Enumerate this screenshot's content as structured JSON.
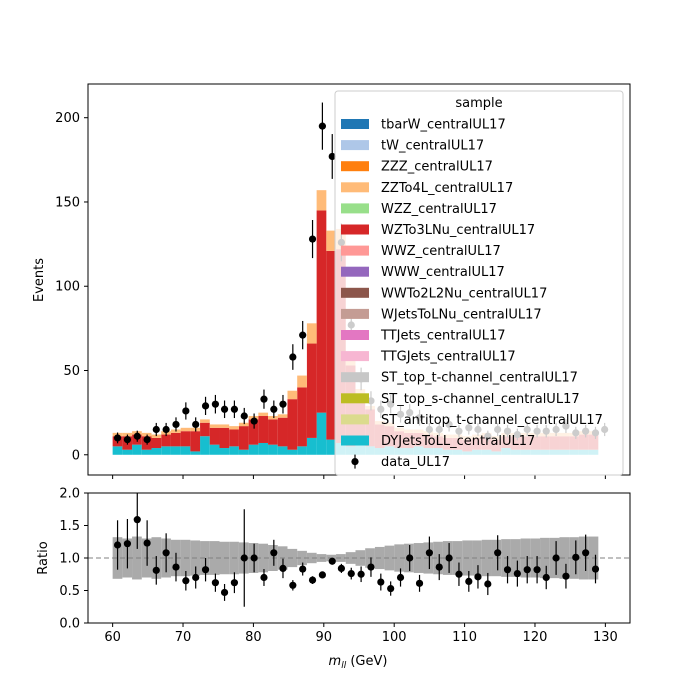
{
  "chart_data": [
    {
      "type": "bar",
      "panel": "main",
      "xlabel": "m_ll (GeV)",
      "ylabel": "Events",
      "xlim": [
        56.5,
        133.5
      ],
      "ylim": [
        -12,
        220
      ],
      "yticks": [
        0,
        50,
        100,
        150,
        200
      ],
      "bin_edges_start": 60,
      "bin_width": 1.38,
      "stacked": true,
      "legend": {
        "title": "sample",
        "position": "top-right",
        "entries": [
          {
            "name": "tbarW_centralUL17",
            "color": "#1f77b4",
            "kind": "patch"
          },
          {
            "name": "tW_centralUL17",
            "color": "#aec7e8",
            "kind": "patch"
          },
          {
            "name": "ZZZ_centralUL17",
            "color": "#ff7f0e",
            "kind": "patch"
          },
          {
            "name": "ZZTo4L_centralUL17",
            "color": "#ffbb78",
            "kind": "patch"
          },
          {
            "name": "WZZ_centralUL17",
            "color": "#98df8a",
            "kind": "patch"
          },
          {
            "name": "WZTo3LNu_centralUL17",
            "color": "#d62728",
            "kind": "patch"
          },
          {
            "name": "WWZ_centralUL17",
            "color": "#ff9896",
            "kind": "patch"
          },
          {
            "name": "WWW_centralUL17",
            "color": "#9467bd",
            "kind": "patch"
          },
          {
            "name": "WWTo2L2Nu_centralUL17",
            "color": "#8c564b",
            "kind": "patch"
          },
          {
            "name": "WJetsToLNu_centralUL17",
            "color": "#c49c94",
            "kind": "patch"
          },
          {
            "name": "TTJets_centralUL17",
            "color": "#e377c2",
            "kind": "patch"
          },
          {
            "name": "TTGJets_centralUL17",
            "color": "#f7b6d2",
            "kind": "patch"
          },
          {
            "name": "ST_top_t-channel_centralUL17",
            "color": "#c7c7c7",
            "kind": "patch"
          },
          {
            "name": "ST_top_s-channel_centralUL17",
            "color": "#bcbd22",
            "kind": "patch"
          },
          {
            "name": "ST_antitop_t-channel_centralUL17",
            "color": "#dbdb8d",
            "kind": "patch"
          },
          {
            "name": "DYJetsToLL_centralUL17",
            "color": "#17becf",
            "kind": "patch"
          },
          {
            "name": "data_UL17",
            "color": "#000000",
            "kind": "marker"
          }
        ]
      },
      "series": [
        {
          "name": "DYJetsToLL_centralUL17",
          "color": "#17becf",
          "values": [
            5,
            3,
            6,
            3,
            4,
            5,
            5,
            5,
            2,
            11,
            6,
            4,
            5,
            3,
            6,
            7,
            6,
            5,
            3,
            5,
            10,
            25,
            9,
            7,
            5,
            6,
            5,
            4,
            5,
            4,
            4,
            5,
            4,
            4,
            3,
            3,
            2,
            3,
            3,
            2,
            4,
            3,
            3,
            3,
            3,
            3,
            3,
            3,
            3,
            3
          ]
        },
        {
          "name": "WZTo3LNu_centralUL17",
          "color": "#d62728",
          "values": [
            6,
            8,
            6,
            8,
            6,
            7,
            8,
            9,
            12,
            8,
            10,
            12,
            10,
            14,
            15,
            16,
            15,
            17,
            30,
            35,
            56,
            120,
            112,
            115,
            48,
            30,
            22,
            14,
            12,
            10,
            9,
            8,
            8,
            7,
            7,
            7,
            7,
            7,
            8,
            7,
            7,
            8,
            8,
            8,
            8,
            8,
            8,
            8,
            9,
            9
          ]
        },
        {
          "name": "ZZTo4L_centralUL17",
          "color": "#ffbb78",
          "values": [
            2,
            2,
            2,
            2,
            2,
            2,
            2,
            2,
            2,
            2,
            2,
            2,
            2,
            2,
            2,
            2,
            2,
            2,
            5,
            7,
            12,
            12,
            12,
            12,
            5,
            3,
            2,
            2,
            2,
            2,
            2,
            2,
            2,
            2,
            2,
            2,
            2,
            2,
            2,
            2,
            2,
            2,
            2,
            2,
            2,
            2,
            2,
            2,
            2,
            2
          ]
        },
        {
          "name": "ST_top_t-channel_centralUL17",
          "color": "#c7c7c7",
          "values": [
            0,
            0,
            0,
            0,
            0,
            0,
            0,
            0,
            0,
            0,
            0,
            0,
            0,
            0,
            0,
            0,
            0,
            0,
            0,
            0,
            0,
            0,
            0,
            0,
            0,
            0,
            0,
            0,
            0,
            0,
            0,
            0,
            0,
            0,
            0,
            0,
            0,
            0,
            0,
            0,
            0,
            0,
            0,
            0,
            0,
            0,
            0,
            0,
            0,
            0
          ]
        },
        {
          "name": "ZZZ_centralUL17",
          "color": "#ff7f0e",
          "values": [
            0,
            0,
            0,
            0,
            0,
            0,
            0,
            0,
            0,
            0,
            0,
            0,
            0,
            0,
            0,
            0,
            0,
            0,
            0,
            0,
            0,
            0,
            0,
            0,
            0,
            0,
            0,
            0,
            0,
            0,
            0,
            0,
            0,
            0,
            0,
            0,
            0,
            0,
            0,
            0,
            0,
            0,
            0,
            0,
            0,
            0,
            0,
            0,
            0,
            0
          ]
        }
      ],
      "data_series": {
        "name": "data_UL17",
        "x": [
          60.7,
          62.1,
          63.5,
          64.9,
          66.2,
          67.6,
          69.0,
          70.4,
          71.8,
          73.2,
          74.6,
          75.9,
          77.3,
          78.7,
          80.1,
          81.5,
          82.9,
          84.2,
          85.6,
          87.0,
          88.4,
          89.8,
          91.2,
          92.5,
          93.9,
          95.3,
          96.7,
          98.1,
          99.5,
          100.9,
          102.2,
          103.6,
          105.0,
          106.4,
          107.8,
          109.2,
          110.6,
          111.9,
          113.3,
          114.7,
          116.1,
          117.5,
          118.9,
          120.3,
          121.6,
          123.0,
          124.4,
          125.8,
          127.2,
          128.6,
          129.9
        ],
        "y": [
          10,
          9,
          11,
          9,
          15,
          15,
          18,
          26,
          18,
          29,
          30,
          27,
          27,
          23,
          20,
          33,
          27,
          30,
          58,
          71,
          128,
          195,
          177,
          126,
          77,
          45,
          32,
          27,
          30,
          24,
          25,
          22,
          15,
          15,
          18,
          14,
          16,
          15,
          11,
          15,
          14,
          12,
          15,
          14,
          14,
          15,
          17,
          13,
          14,
          13,
          15
        ],
        "yerr": [
          3.2,
          3.0,
          3.3,
          3.0,
          3.9,
          3.9,
          4.2,
          5.1,
          4.2,
          5.4,
          5.5,
          5.2,
          5.2,
          4.8,
          4.5,
          5.7,
          5.2,
          5.5,
          7.6,
          8.4,
          11.3,
          14.0,
          13.3,
          11.2,
          8.8,
          6.7,
          5.7,
          5.2,
          5.5,
          4.9,
          5.0,
          4.7,
          3.9,
          3.9,
          4.2,
          3.7,
          4.0,
          3.9,
          3.3,
          3.9,
          3.7,
          3.5,
          3.9,
          3.7,
          3.7,
          3.9,
          4.1,
          3.6,
          3.7,
          3.6,
          3.9
        ]
      }
    },
    {
      "type": "scatter",
      "panel": "ratio",
      "xlabel": "m_ll (GeV)",
      "ylabel": "Ratio",
      "xlim": [
        56.5,
        133.5
      ],
      "ylim": [
        0.0,
        2.0
      ],
      "yticks": [
        0.0,
        0.5,
        1.0,
        1.5,
        2.0
      ],
      "xticks": [
        60,
        70,
        80,
        90,
        100,
        110,
        120,
        130
      ],
      "reference_line": 1.0,
      "band": {
        "color": "#aaaaaa",
        "bin_edges_start": 60,
        "bin_width": 1.38,
        "halfwidth": [
          0.32,
          0.3,
          0.33,
          0.3,
          0.32,
          0.3,
          0.28,
          0.28,
          0.27,
          0.26,
          0.26,
          0.25,
          0.25,
          0.24,
          0.23,
          0.22,
          0.2,
          0.18,
          0.14,
          0.11,
          0.08,
          0.06,
          0.05,
          0.06,
          0.09,
          0.12,
          0.15,
          0.17,
          0.19,
          0.21,
          0.22,
          0.23,
          0.24,
          0.25,
          0.26,
          0.26,
          0.27,
          0.27,
          0.28,
          0.28,
          0.29,
          0.29,
          0.3,
          0.3,
          0.31,
          0.31,
          0.32,
          0.32,
          0.33,
          0.33
        ]
      },
      "points": {
        "x": [
          60.7,
          62.1,
          63.5,
          64.9,
          66.2,
          67.6,
          69.0,
          70.4,
          71.8,
          73.2,
          74.6,
          75.9,
          77.3,
          78.7,
          80.1,
          81.5,
          82.9,
          84.2,
          85.6,
          87.0,
          88.4,
          89.8,
          91.2,
          92.5,
          93.9,
          95.3,
          96.7,
          98.1,
          99.5,
          100.9,
          102.2,
          103.6,
          105.0,
          106.4,
          107.8,
          109.2,
          110.6,
          111.9,
          113.3,
          114.7,
          116.1,
          117.5,
          118.9,
          120.3,
          121.6,
          123.0,
          124.4,
          125.8,
          127.2,
          128.6,
          129.9
        ],
        "y": [
          1.2,
          1.22,
          1.59,
          1.23,
          0.81,
          1.08,
          0.86,
          0.65,
          0.7,
          0.82,
          0.62,
          0.47,
          0.62,
          1.0,
          1.0,
          0.7,
          1.08,
          0.84,
          0.58,
          0.83,
          0.66,
          0.74,
          0.95,
          0.84,
          0.76,
          0.75,
          0.86,
          0.63,
          0.53,
          0.7,
          1.0,
          0.61,
          1.08,
          0.86,
          1.0,
          0.75,
          0.64,
          0.71,
          0.6,
          1.08,
          0.82,
          0.76,
          0.82,
          0.82,
          0.7,
          1.0,
          0.72,
          1.01,
          1.08,
          0.83,
          null
        ],
        "yerr": [
          0.38,
          0.38,
          0.45,
          0.35,
          0.22,
          0.3,
          0.22,
          0.15,
          0.17,
          0.18,
          0.14,
          0.13,
          0.16,
          0.75,
          0.22,
          0.13,
          0.2,
          0.15,
          0.08,
          0.1,
          0.06,
          0.05,
          0.05,
          0.07,
          0.09,
          0.12,
          0.15,
          0.13,
          0.11,
          0.14,
          0.2,
          0.13,
          0.25,
          0.2,
          0.23,
          0.18,
          0.16,
          0.18,
          0.17,
          0.27,
          0.21,
          0.2,
          0.21,
          0.21,
          0.18,
          0.26,
          0.19,
          0.26,
          0.28,
          0.22,
          0
        ]
      }
    }
  ]
}
